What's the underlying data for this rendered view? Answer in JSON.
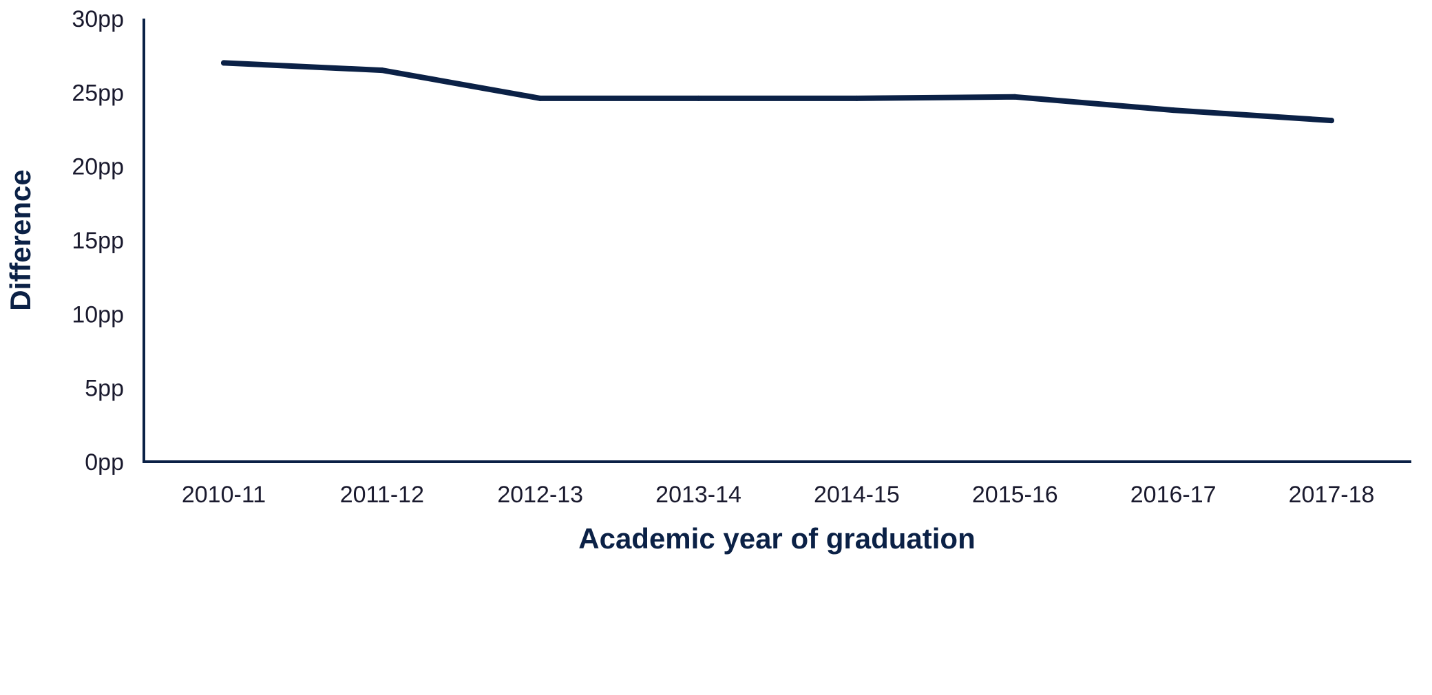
{
  "chart_data": {
    "type": "line",
    "title": "",
    "xlabel": "Academic year of graduation",
    "ylabel": "Difference",
    "categories": [
      "2010-11",
      "2011-12",
      "2012-13",
      "2013-14",
      "2014-15",
      "2015-16",
      "2016-17",
      "2017-18"
    ],
    "series": [
      {
        "values": [
          27.0,
          26.5,
          24.6,
          24.6,
          24.6,
          24.7,
          23.8,
          23.1
        ]
      }
    ],
    "ylim": [
      0,
      30
    ],
    "yticks": [
      0,
      5,
      10,
      15,
      20,
      25,
      30
    ],
    "ytick_labels": [
      "0pp",
      "5pp",
      "10pp",
      "15pp",
      "20pp",
      "25pp",
      "30pp"
    ],
    "grid": false,
    "legend": "none",
    "colors": {
      "line": "#0b2146",
      "axis": "#0b2146",
      "title_text": "#0b2146",
      "tick_text": "#1a1a2e"
    }
  }
}
